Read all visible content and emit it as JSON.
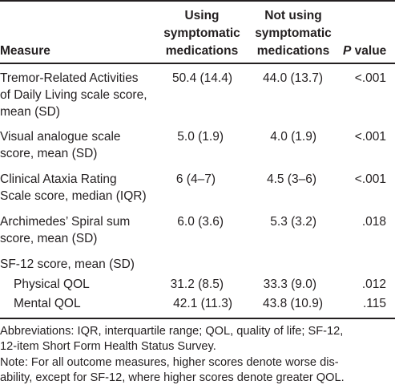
{
  "table": {
    "headers": {
      "measure": "Measure",
      "using_line1": "Using",
      "using_line2": "symptomatic",
      "using_line3": "medications",
      "notusing_line1": "Not using",
      "notusing_line2": "symptomatic",
      "notusing_line3": "medications",
      "p_letter": "P",
      "p_rest": " value"
    },
    "rows": [
      {
        "label_lines": [
          "Tremor-Related Activities",
          "of Daily Living scale score,",
          "mean (SD)"
        ],
        "using": "50.4 (14.4)",
        "not_using": "44.0 (13.7)",
        "p": "<.001"
      },
      {
        "label_lines": [
          "Visual analogue scale",
          "score, mean (SD)"
        ],
        "using": "5.0 (1.9)",
        "not_using": "4.0 (1.9)",
        "p": "<.001"
      },
      {
        "label_lines": [
          "Clinical Ataxia Rating",
          "Scale score, median (IQR)"
        ],
        "using": "6 (4–7)",
        "not_using": "4.5 (3–6)",
        "p": "<.001"
      },
      {
        "label_lines": [
          "Archimedes’ Spiral sum",
          "score, mean (SD)"
        ],
        "using": "6.0 (3.6)",
        "not_using": "5.3 (3.2)",
        "p": ".018"
      },
      {
        "label_lines": [
          "SF-12 score, mean (SD)"
        ],
        "using": "",
        "not_using": "",
        "p": ""
      },
      {
        "label_lines": [
          "Physical QOL"
        ],
        "using": "31.2 (8.5)",
        "not_using": "33.3 (9.0)",
        "p": ".012"
      },
      {
        "label_lines": [
          "Mental QOL"
        ],
        "using": "42.1 (11.3)",
        "not_using": "43.8 (10.9)",
        "p": ".115"
      }
    ],
    "footnotes": [
      "Abbreviations: IQR, interquartile range; QOL, quality of life; SF-12,",
      "12-item Short Form Health Status Survey.",
      "Note: For all outcome measures, higher scores denote worse dis-",
      "ability, except for SF-12, where higher scores denote greater QOL."
    ]
  }
}
